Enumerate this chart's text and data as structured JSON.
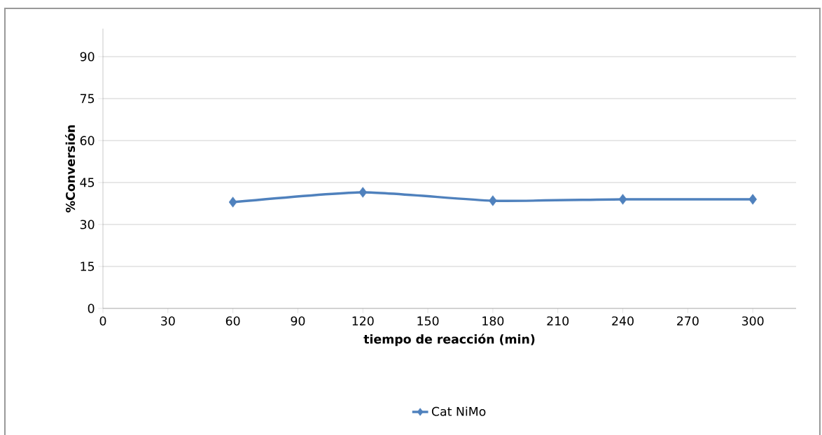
{
  "chart_data": {
    "type": "line",
    "xlabel": "tiempo de reacción (min)",
    "ylabel": "%Conversión",
    "x": [
      60,
      120,
      180,
      240,
      300
    ],
    "series": [
      {
        "name": "Cat NiMo",
        "color": "#4f81bd",
        "values": [
          38,
          41.5,
          38.5,
          39,
          39
        ]
      }
    ],
    "xlim": [
      0,
      320
    ],
    "ylim": [
      0,
      100
    ],
    "xticks": [
      0,
      30,
      60,
      90,
      120,
      150,
      180,
      210,
      240,
      270,
      300
    ],
    "yticks": [
      0,
      15,
      30,
      45,
      60,
      75,
      90
    ],
    "grid": "y",
    "legend": "bottom",
    "marker": "diamond"
  }
}
